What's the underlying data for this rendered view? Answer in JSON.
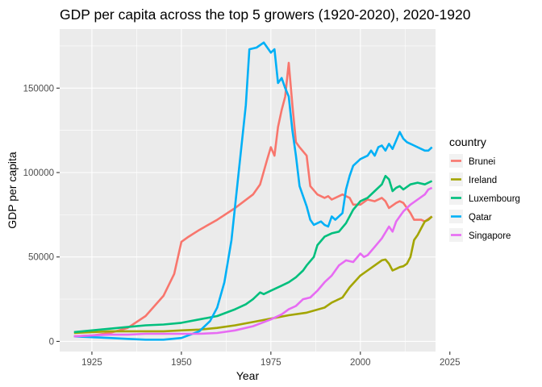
{
  "chart_data": {
    "type": "line",
    "title": "GDP per capita across the top 5 growers (1920-2020), 2020-1920",
    "xlabel": "Year",
    "ylabel": "GDP per capita",
    "xlim": [
      1916,
      2021
    ],
    "ylim": [
      -6000,
      185000
    ],
    "x_ticks": [
      1925,
      1950,
      1975,
      2000,
      2025
    ],
    "y_ticks": [
      0,
      50000,
      100000,
      150000
    ],
    "y_tick_labels": [
      "0",
      "50000",
      "100000",
      "150000"
    ],
    "grid": true,
    "legend_title": "country",
    "legend_position": "right",
    "series": [
      {
        "name": "Brunei",
        "color": "#F8766D",
        "points": [
          [
            1920,
            3000
          ],
          [
            1925,
            3500
          ],
          [
            1930,
            5000
          ],
          [
            1935,
            8000
          ],
          [
            1940,
            15000
          ],
          [
            1945,
            27000
          ],
          [
            1948,
            40000
          ],
          [
            1950,
            59000
          ],
          [
            1952,
            62000
          ],
          [
            1955,
            66000
          ],
          [
            1960,
            72000
          ],
          [
            1965,
            79000
          ],
          [
            1970,
            87000
          ],
          [
            1972,
            93000
          ],
          [
            1974,
            108000
          ],
          [
            1975,
            115000
          ],
          [
            1976,
            110000
          ],
          [
            1977,
            127000
          ],
          [
            1978,
            137000
          ],
          [
            1979,
            145000
          ],
          [
            1980,
            165000
          ],
          [
            1981,
            140000
          ],
          [
            1982,
            118000
          ],
          [
            1983,
            115000
          ],
          [
            1985,
            110000
          ],
          [
            1986,
            92000
          ],
          [
            1988,
            87000
          ],
          [
            1990,
            85000
          ],
          [
            1991,
            86000
          ],
          [
            1992,
            84000
          ],
          [
            1994,
            86000
          ],
          [
            1995,
            87000
          ],
          [
            1996,
            86000
          ],
          [
            1997,
            85000
          ],
          [
            1998,
            81000
          ],
          [
            2000,
            81000
          ],
          [
            2002,
            84000
          ],
          [
            2004,
            83000
          ],
          [
            2006,
            85000
          ],
          [
            2007,
            83000
          ],
          [
            2008,
            79000
          ],
          [
            2010,
            82000
          ],
          [
            2011,
            83000
          ],
          [
            2012,
            82000
          ],
          [
            2013,
            79000
          ],
          [
            2014,
            76000
          ],
          [
            2015,
            72000
          ],
          [
            2017,
            72000
          ],
          [
            2018,
            71000
          ],
          [
            2020,
            74000
          ]
        ]
      },
      {
        "name": "Ireland",
        "color": "#A3A500",
        "points": [
          [
            1920,
            5000
          ],
          [
            1925,
            5500
          ],
          [
            1930,
            6000
          ],
          [
            1935,
            6000
          ],
          [
            1940,
            6000
          ],
          [
            1945,
            6000
          ],
          [
            1950,
            6500
          ],
          [
            1955,
            7000
          ],
          [
            1960,
            8000
          ],
          [
            1965,
            9500
          ],
          [
            1970,
            11500
          ],
          [
            1975,
            13500
          ],
          [
            1980,
            15500
          ],
          [
            1985,
            17000
          ],
          [
            1990,
            20000
          ],
          [
            1992,
            23000
          ],
          [
            1995,
            26000
          ],
          [
            1997,
            32000
          ],
          [
            2000,
            39000
          ],
          [
            2002,
            42000
          ],
          [
            2004,
            45000
          ],
          [
            2006,
            48000
          ],
          [
            2007,
            48500
          ],
          [
            2008,
            46000
          ],
          [
            2009,
            42000
          ],
          [
            2010,
            43000
          ],
          [
            2011,
            44000
          ],
          [
            2012,
            44500
          ],
          [
            2013,
            46000
          ],
          [
            2014,
            50000
          ],
          [
            2015,
            60000
          ],
          [
            2016,
            63000
          ],
          [
            2017,
            67000
          ],
          [
            2018,
            71000
          ],
          [
            2019,
            72000
          ],
          [
            2020,
            74000
          ]
        ]
      },
      {
        "name": "Luxembourg",
        "color": "#00BF7D",
        "points": [
          [
            1920,
            5500
          ],
          [
            1925,
            6500
          ],
          [
            1930,
            7500
          ],
          [
            1935,
            8500
          ],
          [
            1940,
            9500
          ],
          [
            1945,
            10000
          ],
          [
            1950,
            11000
          ],
          [
            1955,
            13000
          ],
          [
            1960,
            15000
          ],
          [
            1965,
            19000
          ],
          [
            1968,
            22000
          ],
          [
            1970,
            25000
          ],
          [
            1972,
            29000
          ],
          [
            1973,
            28000
          ],
          [
            1975,
            30000
          ],
          [
            1978,
            33000
          ],
          [
            1980,
            35000
          ],
          [
            1982,
            38000
          ],
          [
            1984,
            42000
          ],
          [
            1985,
            45000
          ],
          [
            1987,
            50000
          ],
          [
            1988,
            57000
          ],
          [
            1990,
            62000
          ],
          [
            1992,
            64000
          ],
          [
            1994,
            65000
          ],
          [
            1996,
            70000
          ],
          [
            1998,
            78000
          ],
          [
            2000,
            83000
          ],
          [
            2002,
            85000
          ],
          [
            2004,
            89000
          ],
          [
            2006,
            93000
          ],
          [
            2007,
            98000
          ],
          [
            2008,
            96000
          ],
          [
            2009,
            89000
          ],
          [
            2010,
            91000
          ],
          [
            2011,
            92000
          ],
          [
            2012,
            90000
          ],
          [
            2014,
            93000
          ],
          [
            2016,
            94000
          ],
          [
            2018,
            93000
          ],
          [
            2020,
            95000
          ]
        ]
      },
      {
        "name": "Qatar",
        "color": "#00B0F6",
        "points": [
          [
            1920,
            3000
          ],
          [
            1925,
            2500
          ],
          [
            1930,
            2000
          ],
          [
            1935,
            1500
          ],
          [
            1940,
            1000
          ],
          [
            1945,
            1000
          ],
          [
            1950,
            2000
          ],
          [
            1955,
            6000
          ],
          [
            1958,
            12000
          ],
          [
            1960,
            20000
          ],
          [
            1962,
            35000
          ],
          [
            1964,
            60000
          ],
          [
            1966,
            100000
          ],
          [
            1968,
            140000
          ],
          [
            1969,
            173000
          ],
          [
            1971,
            174000
          ],
          [
            1973,
            177000
          ],
          [
            1974,
            174000
          ],
          [
            1975,
            171000
          ],
          [
            1976,
            173000
          ],
          [
            1977,
            153000
          ],
          [
            1978,
            156000
          ],
          [
            1979,
            150000
          ],
          [
            1980,
            145000
          ],
          [
            1981,
            125000
          ],
          [
            1982,
            110000
          ],
          [
            1983,
            92000
          ],
          [
            1985,
            80000
          ],
          [
            1986,
            72000
          ],
          [
            1987,
            69000
          ],
          [
            1988,
            70000
          ],
          [
            1989,
            71000
          ],
          [
            1990,
            69000
          ],
          [
            1991,
            68000
          ],
          [
            1992,
            74000
          ],
          [
            1993,
            72000
          ],
          [
            1995,
            76000
          ],
          [
            1996,
            90000
          ],
          [
            1997,
            98000
          ],
          [
            1998,
            104000
          ],
          [
            2000,
            108000
          ],
          [
            2002,
            110000
          ],
          [
            2003,
            113000
          ],
          [
            2004,
            110000
          ],
          [
            2005,
            115000
          ],
          [
            2006,
            116000
          ],
          [
            2007,
            113000
          ],
          [
            2008,
            117000
          ],
          [
            2009,
            114000
          ],
          [
            2010,
            119000
          ],
          [
            2011,
            124000
          ],
          [
            2012,
            120000
          ],
          [
            2013,
            118000
          ],
          [
            2015,
            116000
          ],
          [
            2017,
            114000
          ],
          [
            2018,
            113000
          ],
          [
            2019,
            113000
          ],
          [
            2020,
            115000
          ]
        ]
      },
      {
        "name": "Singapore",
        "color": "#E76BF3",
        "points": [
          [
            1920,
            3000
          ],
          [
            1925,
            3500
          ],
          [
            1930,
            4000
          ],
          [
            1935,
            4000
          ],
          [
            1940,
            4500
          ],
          [
            1945,
            4500
          ],
          [
            1950,
            4500
          ],
          [
            1955,
            4500
          ],
          [
            1960,
            5000
          ],
          [
            1965,
            6500
          ],
          [
            1970,
            9000
          ],
          [
            1975,
            13000
          ],
          [
            1978,
            16000
          ],
          [
            1980,
            19000
          ],
          [
            1982,
            21000
          ],
          [
            1984,
            25000
          ],
          [
            1986,
            26000
          ],
          [
            1988,
            30000
          ],
          [
            1990,
            35000
          ],
          [
            1992,
            39000
          ],
          [
            1994,
            45000
          ],
          [
            1996,
            48000
          ],
          [
            1998,
            47000
          ],
          [
            2000,
            52000
          ],
          [
            2001,
            50000
          ],
          [
            2002,
            51000
          ],
          [
            2004,
            56000
          ],
          [
            2006,
            61000
          ],
          [
            2008,
            68000
          ],
          [
            2009,
            65000
          ],
          [
            2010,
            71000
          ],
          [
            2011,
            74000
          ],
          [
            2012,
            77000
          ],
          [
            2014,
            81000
          ],
          [
            2016,
            84000
          ],
          [
            2018,
            87000
          ],
          [
            2019,
            90000
          ],
          [
            2020,
            91000
          ]
        ]
      }
    ]
  }
}
